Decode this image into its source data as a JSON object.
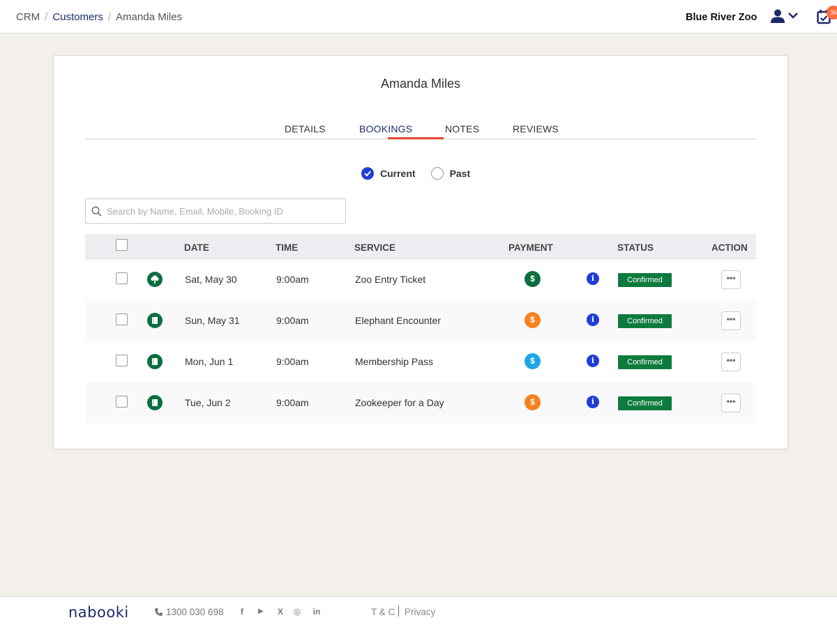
{
  "breadcrumb": {
    "root": "CRM",
    "parent": "Customers",
    "current": "Amanda Miles",
    "sep": "/"
  },
  "header": {
    "org_name": "Blue River Zoo",
    "notifications_count": "36"
  },
  "customer": {
    "name": "Amanda Miles"
  },
  "tabs": [
    {
      "label": "DETAILS",
      "active": false
    },
    {
      "label": "BOOKINGS",
      "active": true
    },
    {
      "label": "NOTES",
      "active": false
    },
    {
      "label": "REVIEWS",
      "active": false
    }
  ],
  "filter": {
    "current_label": "Current",
    "past_label": "Past",
    "selected": "Current"
  },
  "search": {
    "placeholder": "Search by Name, Email, Mobile, Booking ID",
    "value": ""
  },
  "table": {
    "columns": [
      "DATE",
      "TIME",
      "SERVICE",
      "PAYMENT",
      "STATUS",
      "ACTION"
    ],
    "rows": [
      {
        "date": "Sat, May 30",
        "time": "9:00am",
        "service": "Zoo Entry Ticket",
        "service_icon": "tree-icon",
        "payment_icon": "dollar-icon",
        "payment_color": "#0d6e3f",
        "status": "Confirmed"
      },
      {
        "date": "Sun, May 31",
        "time": "9:00am",
        "service": "Elephant Encounter",
        "service_icon": "document-icon",
        "payment_icon": "dollar-icon",
        "payment_color": "#f5821f",
        "status": "Confirmed"
      },
      {
        "date": "Mon, Jun 1",
        "time": "9:00am",
        "service": "Membership Pass",
        "service_icon": "document-icon",
        "payment_icon": "dollar-icon",
        "payment_color": "#1ba6e8",
        "status": "Confirmed"
      },
      {
        "date": "Tue, Jun 2",
        "time": "9:00am",
        "service": "Zookeeper for a Day",
        "service_icon": "document-icon",
        "payment_icon": "dollar-icon",
        "payment_color": "#f5821f",
        "status": "Confirmed"
      }
    ],
    "payment_symbol": "$",
    "info_symbol": "i",
    "action_symbol": "•••"
  },
  "footer": {
    "logo": "nabooki",
    "phone": "1300 030 698",
    "social": [
      {
        "name": "facebook-icon",
        "glyph": "f"
      },
      {
        "name": "youtube-icon",
        "glyph": "▶"
      },
      {
        "name": "x-icon",
        "glyph": "X"
      },
      {
        "name": "instagram-icon",
        "glyph": "◎"
      },
      {
        "name": "linkedin-icon",
        "glyph": "in"
      }
    ],
    "tnc": "T & C",
    "privacy": "Privacy"
  },
  "colors": {
    "accent": "#1f3ed6",
    "tab_underline": "#e0462b",
    "status_confirmed": "#0d7a3e",
    "brand": "#1d2a6b"
  }
}
